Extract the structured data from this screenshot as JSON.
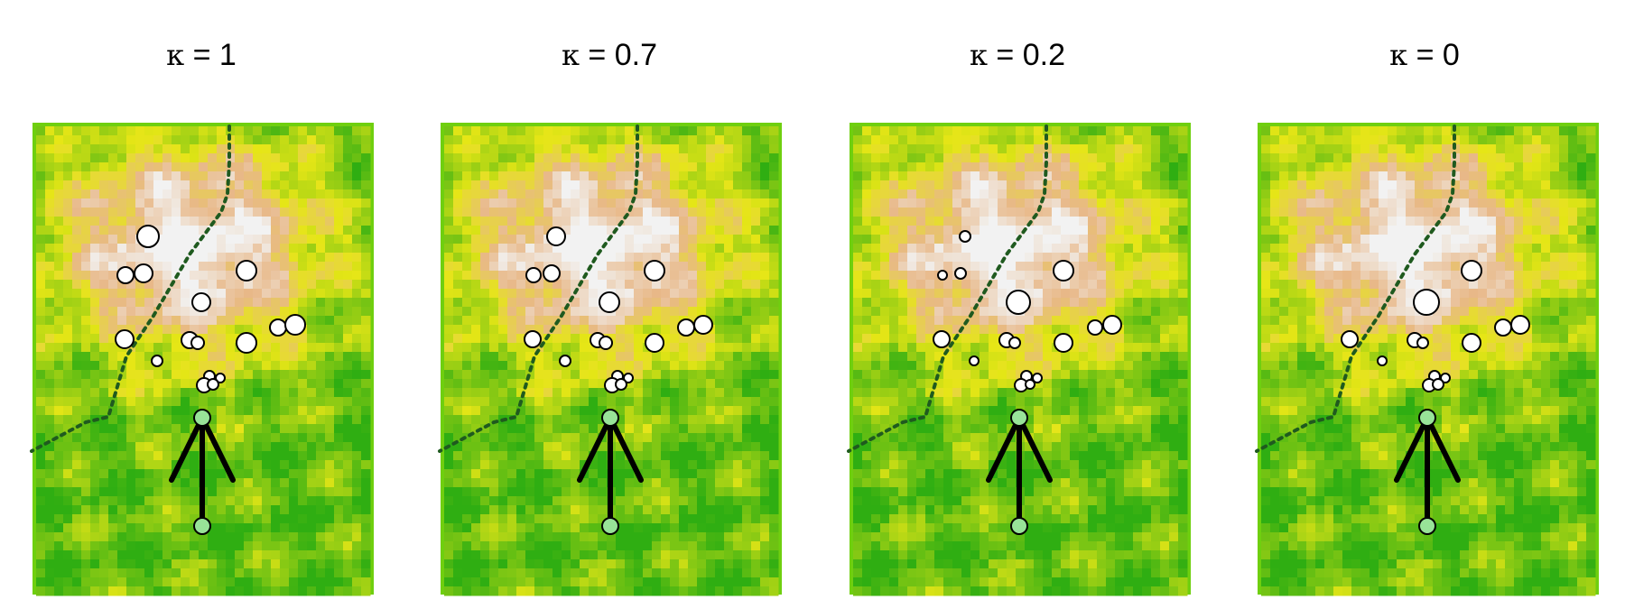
{
  "panels": [
    {
      "symbol": "κ",
      "value": "1",
      "sizes": [
        12,
        9,
        10,
        11,
        10,
        9,
        11,
        10,
        9,
        7,
        11,
        6,
        6,
        5,
        8,
        6
      ]
    },
    {
      "symbol": "κ",
      "value": "0.7",
      "sizes": [
        10,
        8,
        9,
        11,
        11,
        9,
        10,
        9,
        8,
        7,
        10,
        6,
        6,
        5,
        8,
        6
      ]
    },
    {
      "symbol": "κ",
      "value": "0.2",
      "sizes": [
        6,
        5,
        6,
        11,
        13,
        8,
        10,
        9,
        8,
        6,
        10,
        5,
        6,
        5,
        7,
        5
      ]
    },
    {
      "symbol": "κ",
      "value": "0",
      "sizes": [
        0,
        0,
        0,
        11,
        14,
        9,
        10,
        9,
        8,
        6,
        10,
        5,
        6,
        5,
        7,
        6
      ]
    }
  ],
  "colors": {
    "frame": "#6fcf0f",
    "low": "#2fae12",
    "mid": "#e6e616",
    "high": "#e8b888",
    "peak": "#f2f2f2",
    "path": "#1f5a1f",
    "node": "#98e398",
    "point": "#ffffff"
  }
}
